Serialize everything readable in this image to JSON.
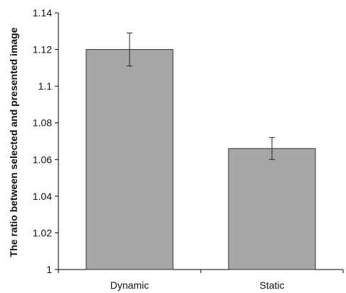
{
  "chart_data": {
    "type": "bar",
    "categories": [
      "Dynamic",
      "Static"
    ],
    "values": [
      1.12,
      1.066
    ],
    "error_upper": [
      1.129,
      1.072
    ],
    "error_lower": [
      1.111,
      1.06
    ],
    "title": "",
    "xlabel": "",
    "ylabel": "The ratio between selected and presented image",
    "ylim": [
      1,
      1.14
    ],
    "y_ticks": [
      1,
      1.02,
      1.04,
      1.06,
      1.08,
      1.1,
      1.12,
      1.14
    ],
    "y_tick_labels": [
      "1",
      "1.02",
      "1.04",
      "1.06",
      "1.08",
      "1.1",
      "1.12",
      "1.14"
    ],
    "grid": false,
    "legend": "none",
    "bar_color": "#a6a6a6",
    "edge_color": "#333333"
  }
}
